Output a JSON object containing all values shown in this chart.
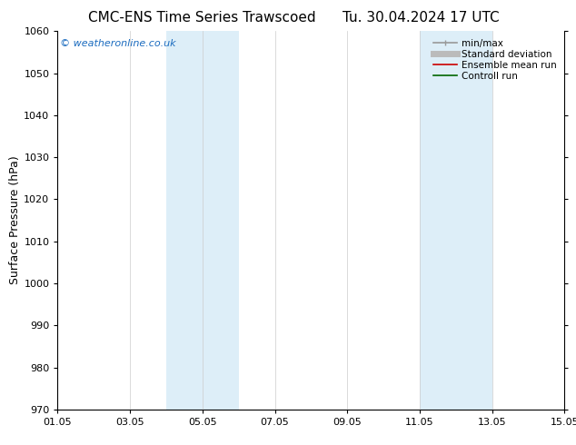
{
  "title_left": "CMC-ENS Time Series Trawscoed",
  "title_right": "Tu. 30.04.2024 17 UTC",
  "ylabel": "Surface Pressure (hPa)",
  "ylim": [
    970,
    1060
  ],
  "yticks": [
    970,
    980,
    990,
    1000,
    1010,
    1020,
    1030,
    1040,
    1050,
    1060
  ],
  "xlim_num": [
    0,
    14
  ],
  "xtick_labels": [
    "01.05",
    "03.05",
    "05.05",
    "07.05",
    "09.05",
    "11.05",
    "13.05",
    "15.05"
  ],
  "xtick_positions": [
    0,
    2,
    4,
    6,
    8,
    10,
    12,
    14
  ],
  "shade_bands": [
    {
      "xmin": 3,
      "xmax": 5
    },
    {
      "xmin": 10,
      "xmax": 12
    }
  ],
  "shade_color": "#ddeef8",
  "background_color": "#ffffff",
  "watermark": "© weatheronline.co.uk",
  "watermark_color": "#1a6bbf",
  "legend_items": [
    {
      "label": "min/max",
      "color": "#999999",
      "lw": 1.2
    },
    {
      "label": "Standard deviation",
      "color": "#bbbbbb",
      "lw": 5
    },
    {
      "label": "Ensemble mean run",
      "color": "#cc0000",
      "lw": 1.2
    },
    {
      "label": "Controll run",
      "color": "#006600",
      "lw": 1.2
    }
  ],
  "grid_color": "#cccccc",
  "title_fontsize": 11,
  "axis_fontsize": 9,
  "tick_fontsize": 8,
  "legend_fontsize": 7.5
}
